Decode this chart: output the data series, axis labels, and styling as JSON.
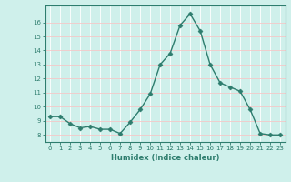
{
  "x": [
    0,
    1,
    2,
    3,
    4,
    5,
    6,
    7,
    8,
    9,
    10,
    11,
    12,
    13,
    14,
    15,
    16,
    17,
    18,
    19,
    20,
    21,
    22,
    23
  ],
  "y": [
    9.3,
    9.3,
    8.8,
    8.5,
    8.6,
    8.4,
    8.4,
    8.1,
    8.9,
    9.8,
    10.9,
    13.0,
    13.8,
    15.8,
    16.6,
    15.4,
    13.0,
    11.7,
    11.4,
    11.1,
    9.8,
    8.1,
    8.0,
    8.0
  ],
  "xlabel": "Humidex (Indice chaleur)",
  "xlim": [
    -0.5,
    23.5
  ],
  "ylim": [
    7.5,
    17.2
  ],
  "yticks": [
    8,
    9,
    10,
    11,
    12,
    13,
    14,
    15,
    16
  ],
  "xticks": [
    0,
    1,
    2,
    3,
    4,
    5,
    6,
    7,
    8,
    9,
    10,
    11,
    12,
    13,
    14,
    15,
    16,
    17,
    18,
    19,
    20,
    21,
    22,
    23
  ],
  "line_color": "#2e7d6e",
  "marker": "D",
  "marker_size": 2.5,
  "bg_color": "#cff0eb",
  "grid_v_color": "#ffffff",
  "grid_h_color": "#f5c8c8",
  "spine_color": "#2e7d6e"
}
